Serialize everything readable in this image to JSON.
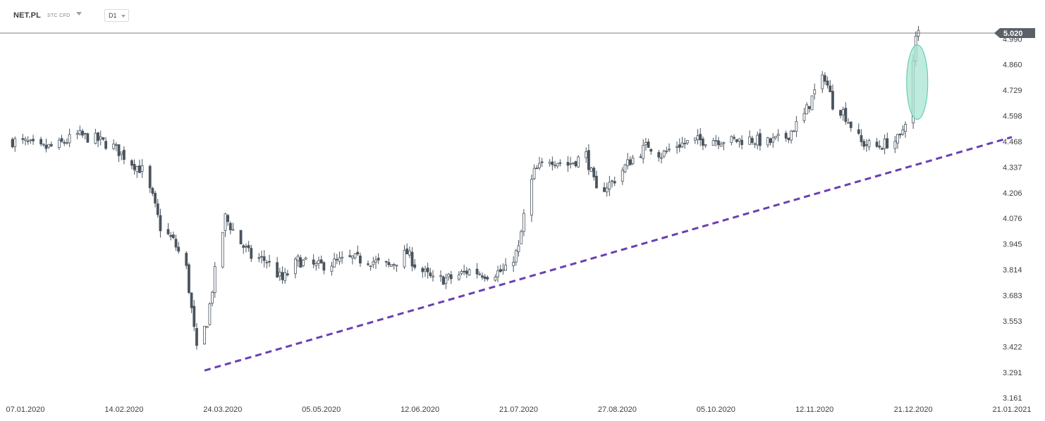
{
  "header": {
    "symbol": "NET.PL",
    "instrument_type": "STC CFD",
    "timeframe": "D1"
  },
  "colors": {
    "candle": "#4a545e",
    "trendline": "#6a3fb3",
    "current_price_line": "#555555",
    "price_tag_bg": "#5a6068",
    "ellipse_fill": "#a8e4d3",
    "ellipse_stroke": "#4ec9a5"
  },
  "chart_data": {
    "type": "candlestick",
    "symbol": "NET.PL",
    "timeframe": "D1",
    "x_tick_labels": [
      "07.01.2020",
      "14.02.2020",
      "24.03.2020",
      "05.05.2020",
      "12.06.2020",
      "21.07.2020",
      "27.08.2020",
      "05.10.2020",
      "12.11.2020",
      "21.12.2020",
      "21.01.2021"
    ],
    "y_tick_labels": [
      "4.990",
      "4.860",
      "4.729",
      "4.598",
      "4.468",
      "4.337",
      "4.206",
      "4.076",
      "3.945",
      "3.814",
      "3.683",
      "3.553",
      "3.422",
      "3.291",
      "3.161"
    ],
    "ylim": [
      3.161,
      5.02
    ],
    "current_price": 5.02,
    "current_price_label": "5.020",
    "trendline": {
      "style": "dashed",
      "start": {
        "date": "2020-03-16",
        "price": 3.3
      },
      "end": {
        "date": "2021-01-21",
        "price": 4.49
      }
    },
    "highlight_ellipse": {
      "center_date": "2020-12-15",
      "price_range": [
        4.58,
        4.96
      ]
    },
    "close_path": [
      [
        "2020-01-02",
        4.47
      ],
      [
        "2020-01-07",
        4.46
      ],
      [
        "2020-01-13",
        4.43
      ],
      [
        "2020-01-20",
        4.45
      ],
      [
        "2020-01-27",
        4.5
      ],
      [
        "2020-02-03",
        4.48
      ],
      [
        "2020-02-10",
        4.44
      ],
      [
        "2020-02-17",
        4.36
      ],
      [
        "2020-02-21",
        4.32
      ],
      [
        "2020-02-25",
        4.18
      ],
      [
        "2020-02-28",
        4.03
      ],
      [
        "2020-03-04",
        3.96
      ],
      [
        "2020-03-09",
        3.82
      ],
      [
        "2020-03-13",
        3.4
      ],
      [
        "2020-03-17",
        3.55
      ],
      [
        "2020-03-20",
        3.8
      ],
      [
        "2020-03-24",
        4.08
      ],
      [
        "2020-03-30",
        3.95
      ],
      [
        "2020-04-03",
        3.88
      ],
      [
        "2020-04-09",
        3.86
      ],
      [
        "2020-04-15",
        3.76
      ],
      [
        "2020-04-21",
        3.86
      ],
      [
        "2020-04-28",
        3.83
      ],
      [
        "2020-05-05",
        3.85
      ],
      [
        "2020-05-12",
        3.87
      ],
      [
        "2020-05-19",
        3.86
      ],
      [
        "2020-05-26",
        3.83
      ],
      [
        "2020-06-02",
        3.9
      ],
      [
        "2020-06-05",
        3.84
      ],
      [
        "2020-06-12",
        3.76
      ],
      [
        "2020-06-19",
        3.77
      ],
      [
        "2020-06-26",
        3.81
      ],
      [
        "2020-07-03",
        3.79
      ],
      [
        "2020-07-10",
        3.81
      ],
      [
        "2020-07-15",
        3.92
      ],
      [
        "2020-07-18",
        4.17
      ],
      [
        "2020-07-21",
        4.31
      ],
      [
        "2020-07-27",
        4.38
      ],
      [
        "2020-08-03",
        4.35
      ],
      [
        "2020-08-10",
        4.4
      ],
      [
        "2020-08-14",
        4.21
      ],
      [
        "2020-08-20",
        4.26
      ],
      [
        "2020-08-27",
        4.37
      ],
      [
        "2020-09-03",
        4.45
      ],
      [
        "2020-09-08",
        4.4
      ],
      [
        "2020-09-14",
        4.45
      ],
      [
        "2020-09-21",
        4.47
      ],
      [
        "2020-09-28",
        4.48
      ],
      [
        "2020-10-05",
        4.47
      ],
      [
        "2020-10-12",
        4.48
      ],
      [
        "2020-10-19",
        4.46
      ],
      [
        "2020-10-26",
        4.49
      ],
      [
        "2020-11-02",
        4.6
      ],
      [
        "2020-11-06",
        4.72
      ],
      [
        "2020-11-10",
        4.8
      ],
      [
        "2020-11-13",
        4.66
      ],
      [
        "2020-11-17",
        4.62
      ],
      [
        "2020-11-20",
        4.55
      ],
      [
        "2020-11-24",
        4.46
      ],
      [
        "2020-11-30",
        4.44
      ],
      [
        "2020-12-04",
        4.46
      ],
      [
        "2020-12-09",
        4.48
      ],
      [
        "2020-12-12",
        4.63
      ],
      [
        "2020-12-15",
        4.99
      ],
      [
        "2020-12-16",
        5.02
      ]
    ]
  }
}
